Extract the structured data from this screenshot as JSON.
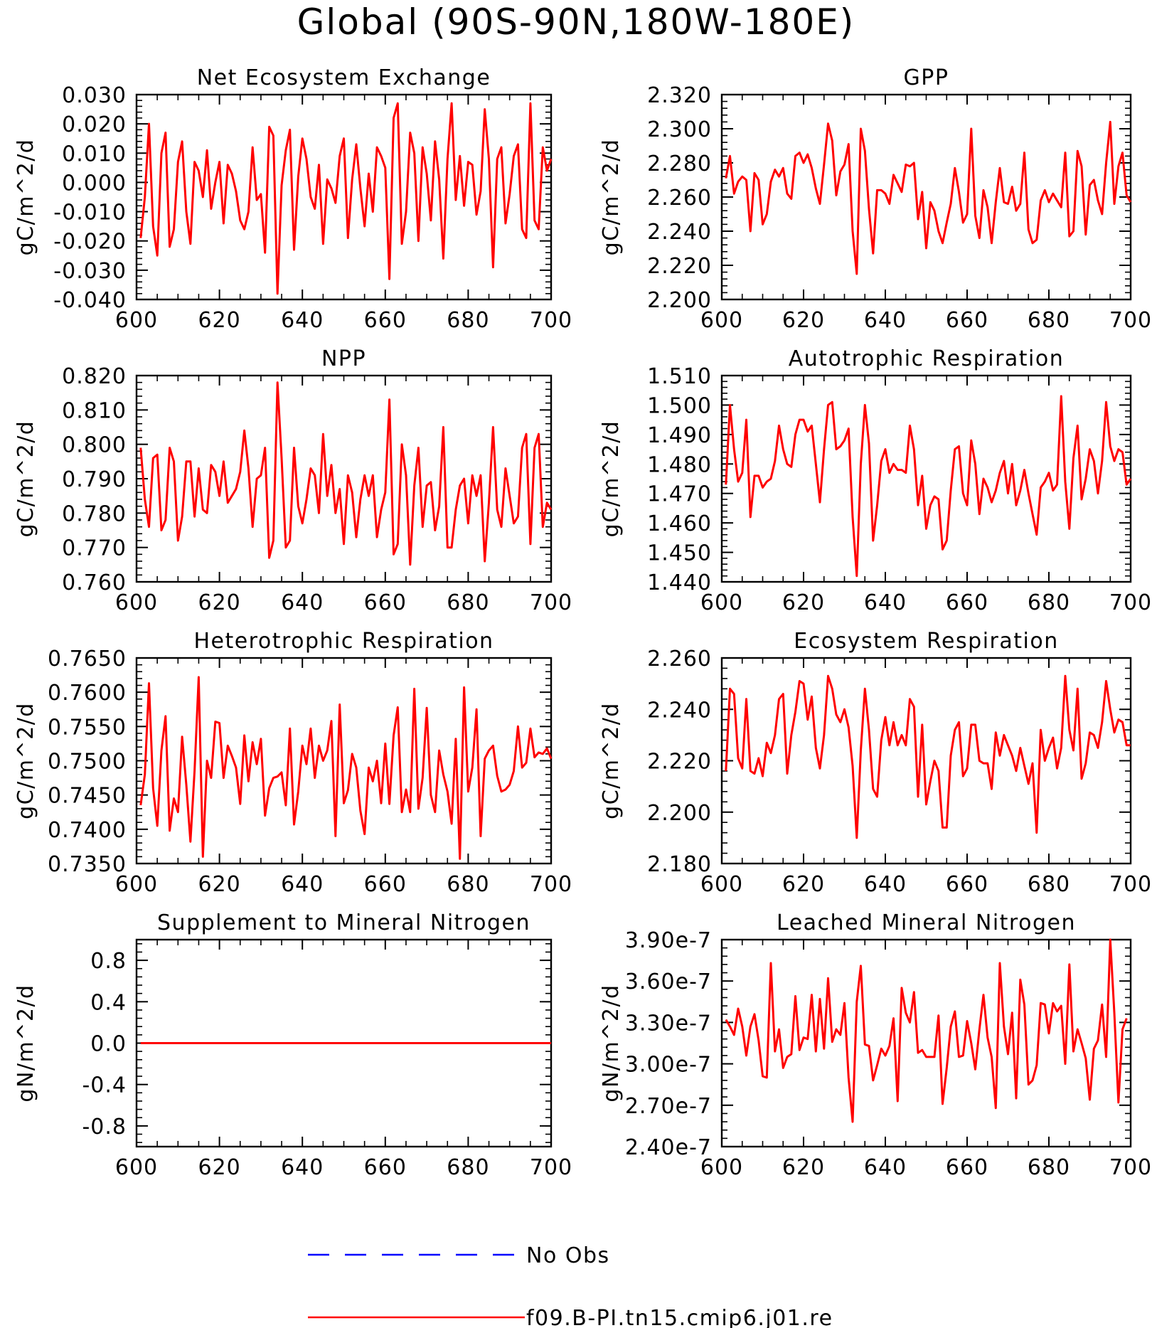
{
  "figure": {
    "title": "Global (90S-90N,180W-180E)",
    "legend": {
      "placement": "bottom-center",
      "entries": [
        {
          "label": "No Obs",
          "color": "#0000ff",
          "style": "dashed"
        },
        {
          "label": "f09.B-PI.tn15.cmip6.j01.re",
          "color": "#ff0000",
          "style": "solid"
        }
      ]
    }
  },
  "chart_data": [
    {
      "type": "line",
      "title": "Net Ecosystem Exchange",
      "ylabel": "gC/m^2/d",
      "xlim": [
        600,
        700
      ],
      "ylim": [
        -0.04,
        0.03
      ],
      "xticks": [
        "600",
        "620",
        "640",
        "660",
        "680",
        "700"
      ],
      "yticks": [
        "-0.040",
        "-0.030",
        "-0.020",
        "-0.010",
        "0.000",
        "0.010",
        "0.020",
        "0.030"
      ],
      "x_start": 601,
      "series": [
        {
          "color": "#ff0000",
          "values": [
            -0.019,
            -0.005,
            0.02,
            -0.015,
            -0.025,
            0.01,
            0.017,
            -0.022,
            -0.016,
            0.007,
            0.014,
            -0.01,
            -0.021,
            0.007,
            0.004,
            -0.005,
            0.011,
            -0.009,
            0.0,
            0.007,
            -0.014,
            0.006,
            0.003,
            -0.003,
            -0.013,
            -0.016,
            -0.01,
            0.012,
            -0.006,
            -0.004,
            -0.024,
            0.019,
            0.016,
            -0.038,
            -0.001,
            0.011,
            0.018,
            -0.023,
            0.002,
            0.015,
            0.008,
            -0.005,
            -0.009,
            0.006,
            -0.021,
            0.001,
            -0.002,
            -0.007,
            0.009,
            0.015,
            -0.019,
            0.001,
            0.013,
            -0.002,
            -0.015,
            0.003,
            -0.01,
            0.012,
            0.009,
            0.005,
            -0.033,
            0.022,
            0.027,
            -0.021,
            -0.01,
            0.017,
            0.01,
            -0.02,
            0.012,
            0.003,
            -0.013,
            0.014,
            0.001,
            -0.026,
            0.008,
            0.027,
            -0.006,
            0.009,
            -0.008,
            0.007,
            0.006,
            -0.011,
            -0.003,
            0.025,
            0.008,
            -0.029,
            0.008,
            0.012,
            -0.014,
            -0.004,
            0.009,
            0.013,
            -0.016,
            -0.019,
            0.027,
            -0.013,
            -0.016,
            0.012,
            0.004,
            0.008
          ]
        }
      ]
    },
    {
      "type": "line",
      "title": "GPP",
      "ylabel": "gC/m^2/d",
      "xlim": [
        600,
        700
      ],
      "ylim": [
        2.2,
        2.32
      ],
      "xticks": [
        "600",
        "620",
        "640",
        "660",
        "680",
        "700"
      ],
      "yticks": [
        "2.200",
        "2.220",
        "2.240",
        "2.260",
        "2.280",
        "2.300",
        "2.320"
      ],
      "x_start": 601,
      "series": [
        {
          "color": "#ff0000",
          "values": [
            2.271,
            2.284,
            2.262,
            2.269,
            2.272,
            2.27,
            2.24,
            2.274,
            2.27,
            2.244,
            2.25,
            2.269,
            2.276,
            2.272,
            2.277,
            2.262,
            2.259,
            2.284,
            2.286,
            2.28,
            2.285,
            2.277,
            2.265,
            2.256,
            2.279,
            2.303,
            2.293,
            2.261,
            2.275,
            2.279,
            2.291,
            2.24,
            2.215,
            2.3,
            2.287,
            2.253,
            2.227,
            2.264,
            2.264,
            2.262,
            2.256,
            2.273,
            2.268,
            2.263,
            2.279,
            2.278,
            2.28,
            2.247,
            2.263,
            2.23,
            2.257,
            2.252,
            2.24,
            2.233,
            2.245,
            2.256,
            2.277,
            2.263,
            2.245,
            2.25,
            2.3,
            2.249,
            2.236,
            2.264,
            2.254,
            2.233,
            2.257,
            2.277,
            2.257,
            2.256,
            2.266,
            2.252,
            2.256,
            2.286,
            2.241,
            2.233,
            2.235,
            2.258,
            2.264,
            2.257,
            2.262,
            2.258,
            2.254,
            2.286,
            2.237,
            2.24,
            2.287,
            2.278,
            2.238,
            2.267,
            2.27,
            2.258,
            2.25,
            2.28,
            2.304,
            2.256,
            2.278,
            2.286,
            2.261,
            2.257
          ]
        }
      ]
    },
    {
      "type": "line",
      "title": "NPP",
      "ylabel": "gC/m^2/d",
      "xlim": [
        600,
        700
      ],
      "ylim": [
        0.76,
        0.82
      ],
      "xticks": [
        "600",
        "620",
        "640",
        "660",
        "680",
        "700"
      ],
      "yticks": [
        "0.760",
        "0.770",
        "0.780",
        "0.790",
        "0.800",
        "0.810",
        "0.820"
      ],
      "x_start": 601,
      "series": [
        {
          "color": "#ff0000",
          "values": [
            0.799,
            0.784,
            0.776,
            0.796,
            0.797,
            0.775,
            0.778,
            0.799,
            0.795,
            0.772,
            0.779,
            0.795,
            0.795,
            0.779,
            0.793,
            0.781,
            0.78,
            0.794,
            0.792,
            0.785,
            0.795,
            0.783,
            0.785,
            0.787,
            0.792,
            0.804,
            0.793,
            0.776,
            0.79,
            0.791,
            0.799,
            0.767,
            0.772,
            0.818,
            0.796,
            0.77,
            0.772,
            0.799,
            0.782,
            0.777,
            0.784,
            0.793,
            0.791,
            0.78,
            0.803,
            0.785,
            0.794,
            0.78,
            0.787,
            0.771,
            0.791,
            0.786,
            0.773,
            0.784,
            0.791,
            0.785,
            0.791,
            0.773,
            0.781,
            0.786,
            0.813,
            0.768,
            0.771,
            0.8,
            0.791,
            0.765,
            0.788,
            0.799,
            0.776,
            0.788,
            0.789,
            0.775,
            0.782,
            0.805,
            0.77,
            0.77,
            0.781,
            0.788,
            0.79,
            0.777,
            0.791,
            0.785,
            0.791,
            0.766,
            0.783,
            0.805,
            0.781,
            0.776,
            0.793,
            0.785,
            0.777,
            0.779,
            0.799,
            0.803,
            0.771,
            0.799,
            0.803,
            0.776,
            0.783,
            0.781
          ]
        }
      ]
    },
    {
      "type": "line",
      "title": "Autotrophic Respiration",
      "ylabel": "gC/m^2/d",
      "xlim": [
        600,
        700
      ],
      "ylim": [
        1.44,
        1.51
      ],
      "xticks": [
        "600",
        "620",
        "640",
        "660",
        "680",
        "700"
      ],
      "yticks": [
        "1.440",
        "1.450",
        "1.460",
        "1.470",
        "1.480",
        "1.490",
        "1.500",
        "1.510"
      ],
      "x_start": 601,
      "series": [
        {
          "color": "#ff0000",
          "values": [
            1.473,
            1.5,
            1.485,
            1.474,
            1.477,
            1.495,
            1.462,
            1.476,
            1.476,
            1.472,
            1.474,
            1.475,
            1.481,
            1.493,
            1.485,
            1.48,
            1.479,
            1.49,
            1.495,
            1.495,
            1.491,
            1.493,
            1.48,
            1.467,
            1.485,
            1.5,
            1.501,
            1.485,
            1.486,
            1.488,
            1.492,
            1.462,
            1.442,
            1.48,
            1.5,
            1.487,
            1.454,
            1.466,
            1.481,
            1.485,
            1.477,
            1.48,
            1.478,
            1.478,
            1.477,
            1.493,
            1.485,
            1.466,
            1.476,
            1.458,
            1.466,
            1.469,
            1.468,
            1.451,
            1.454,
            1.471,
            1.485,
            1.486,
            1.47,
            1.466,
            1.488,
            1.48,
            1.463,
            1.475,
            1.472,
            1.467,
            1.471,
            1.477,
            1.481,
            1.47,
            1.48,
            1.466,
            1.471,
            1.478,
            1.47,
            1.463,
            1.456,
            1.472,
            1.474,
            1.477,
            1.471,
            1.473,
            1.503,
            1.474,
            1.458,
            1.482,
            1.493,
            1.468,
            1.475,
            1.485,
            1.481,
            1.47,
            1.481,
            1.501,
            1.486,
            1.481,
            1.485,
            1.484,
            1.473,
            1.475
          ]
        }
      ]
    },
    {
      "type": "line",
      "title": "Heterotrophic Respiration",
      "ylabel": "gC/m^2/d",
      "xlim": [
        600,
        700
      ],
      "ylim": [
        0.735,
        0.765
      ],
      "xticks": [
        "600",
        "620",
        "640",
        "660",
        "680",
        "700"
      ],
      "yticks": [
        "0.7350",
        "0.7400",
        "0.7450",
        "0.7500",
        "0.7550",
        "0.7600",
        "0.7650"
      ],
      "x_start": 601,
      "series": [
        {
          "color": "#ff0000",
          "values": [
            0.7435,
            0.748,
            0.7613,
            0.746,
            0.7405,
            0.7515,
            0.7565,
            0.7398,
            0.7445,
            0.7425,
            0.7535,
            0.7465,
            0.7382,
            0.7485,
            0.7622,
            0.736,
            0.75,
            0.7475,
            0.7557,
            0.7555,
            0.7475,
            0.7522,
            0.7507,
            0.749,
            0.7437,
            0.7537,
            0.747,
            0.7527,
            0.7495,
            0.7532,
            0.742,
            0.746,
            0.7475,
            0.7477,
            0.7483,
            0.7435,
            0.7547,
            0.7407,
            0.7455,
            0.7522,
            0.7495,
            0.7547,
            0.7475,
            0.7522,
            0.75,
            0.7515,
            0.7558,
            0.739,
            0.7582,
            0.7438,
            0.7457,
            0.751,
            0.749,
            0.7427,
            0.7393,
            0.749,
            0.747,
            0.75,
            0.7438,
            0.7525,
            0.7437,
            0.7537,
            0.7578,
            0.7425,
            0.7458,
            0.7425,
            0.7605,
            0.743,
            0.7475,
            0.7577,
            0.745,
            0.7425,
            0.7515,
            0.748,
            0.7455,
            0.7408,
            0.7532,
            0.7357,
            0.7607,
            0.7455,
            0.749,
            0.7575,
            0.739,
            0.7503,
            0.7515,
            0.7522,
            0.7478,
            0.7455,
            0.7458,
            0.7465,
            0.7485,
            0.755,
            0.749,
            0.7497,
            0.7547,
            0.7505,
            0.7512,
            0.751,
            0.7518,
            0.7503
          ]
        }
      ]
    },
    {
      "type": "line",
      "title": "Ecosystem Respiration",
      "ylabel": "gC/m^2/d",
      "xlim": [
        600,
        700
      ],
      "ylim": [
        2.18,
        2.26
      ],
      "xticks": [
        "600",
        "620",
        "640",
        "660",
        "680",
        "700"
      ],
      "yticks": [
        "2.180",
        "2.200",
        "2.220",
        "2.240",
        "2.260"
      ],
      "x_start": 601,
      "series": [
        {
          "color": "#ff0000",
          "values": [
            2.216,
            2.248,
            2.246,
            2.221,
            2.217,
            2.244,
            2.216,
            2.215,
            2.221,
            2.214,
            2.227,
            2.223,
            2.23,
            2.244,
            2.246,
            2.215,
            2.23,
            2.239,
            2.251,
            2.25,
            2.236,
            2.245,
            2.225,
            2.217,
            2.23,
            2.253,
            2.248,
            2.238,
            2.235,
            2.24,
            2.233,
            2.218,
            2.19,
            2.224,
            2.248,
            2.232,
            2.209,
            2.206,
            2.228,
            2.237,
            2.226,
            2.235,
            2.226,
            2.23,
            2.226,
            2.244,
            2.241,
            2.206,
            2.234,
            2.203,
            2.212,
            2.22,
            2.216,
            2.194,
            2.194,
            2.222,
            2.232,
            2.235,
            2.214,
            2.217,
            2.234,
            2.234,
            2.22,
            2.219,
            2.219,
            2.209,
            2.231,
            2.222,
            2.23,
            2.226,
            2.222,
            2.216,
            2.225,
            2.218,
            2.211,
            2.219,
            2.192,
            2.232,
            2.22,
            2.225,
            2.229,
            2.217,
            2.225,
            2.253,
            2.232,
            2.224,
            2.248,
            2.213,
            2.219,
            2.231,
            2.23,
            2.225,
            2.235,
            2.251,
            2.24,
            2.231,
            2.236,
            2.235,
            2.226,
            2.226
          ]
        }
      ]
    },
    {
      "type": "line",
      "title": "Supplement to Mineral Nitrogen",
      "ylabel": "gN/m^2/d",
      "xlim": [
        600,
        700
      ],
      "ylim": [
        -1.0,
        1.0
      ],
      "xticks": [
        "600",
        "620",
        "640",
        "660",
        "680",
        "700"
      ],
      "yticks": [
        "-0.8",
        "-0.4",
        "0.0",
        "0.4",
        "0.8"
      ],
      "ytick_values": [
        -0.8,
        -0.4,
        0.0,
        0.4,
        0.8
      ],
      "x_start": 601,
      "series": [
        {
          "color": "#ff0000",
          "values": [
            0,
            0
          ]
        }
      ],
      "series_x_end": 700
    },
    {
      "type": "line",
      "title": "Leached Mineral Nitrogen",
      "ylabel": "gN/m^2/d",
      "xlim": [
        600,
        700
      ],
      "ylim": [
        2.4e-07,
        3.9e-07
      ],
      "xticks": [
        "600",
        "620",
        "640",
        "660",
        "680",
        "700"
      ],
      "yticks": [
        "2.40e-7",
        "2.70e-7",
        "3.00e-7",
        "3.30e-7",
        "3.60e-7",
        "3.90e-7"
      ],
      "x_start": 601,
      "series": [
        {
          "color": "#ff0000",
          "values": [
            3.32e-07,
            3.27e-07,
            3.21e-07,
            3.4e-07,
            3.27e-07,
            3.06e-07,
            3.27e-07,
            3.36e-07,
            3.17e-07,
            2.91e-07,
            2.9e-07,
            3.73e-07,
            3.09e-07,
            3.25e-07,
            2.97e-07,
            3.05e-07,
            3.07e-07,
            3.49e-07,
            3.1e-07,
            3.19e-07,
            3.18e-07,
            3.5e-07,
            3.09e-07,
            3.47e-07,
            3.11e-07,
            3.62e-07,
            3.16e-07,
            3.25e-07,
            3.21e-07,
            3.44e-07,
            2.9e-07,
            2.58e-07,
            3.45e-07,
            3.71e-07,
            3.14e-07,
            3.13e-07,
            2.88e-07,
            2.99e-07,
            3.11e-07,
            3.06e-07,
            3.13e-07,
            3.33e-07,
            2.73e-07,
            3.55e-07,
            3.37e-07,
            3.3e-07,
            3.52e-07,
            3.08e-07,
            3.1e-07,
            3.05e-07,
            3.05e-07,
            3.05e-07,
            3.35e-07,
            2.71e-07,
            2.97e-07,
            3.27e-07,
            3.38e-07,
            3.05e-07,
            3.06e-07,
            3.31e-07,
            3.15e-07,
            2.96e-07,
            3.25e-07,
            3.5e-07,
            3.19e-07,
            3.05e-07,
            2.68e-07,
            3.73e-07,
            3.27e-07,
            3.07e-07,
            3.37e-07,
            2.75e-07,
            3.61e-07,
            3.43e-07,
            2.85e-07,
            2.88e-07,
            2.99e-07,
            3.44e-07,
            3.43e-07,
            3.22e-07,
            3.44e-07,
            3.38e-07,
            3.42e-07,
            3e-07,
            3.72e-07,
            3.09e-07,
            3.25e-07,
            3.15e-07,
            3.04e-07,
            2.74e-07,
            3.11e-07,
            3.17e-07,
            3.43e-07,
            3.05e-07,
            3.9e-07,
            3.37e-07,
            2.72e-07,
            3.25e-07,
            3.33e-07
          ]
        }
      ]
    }
  ]
}
